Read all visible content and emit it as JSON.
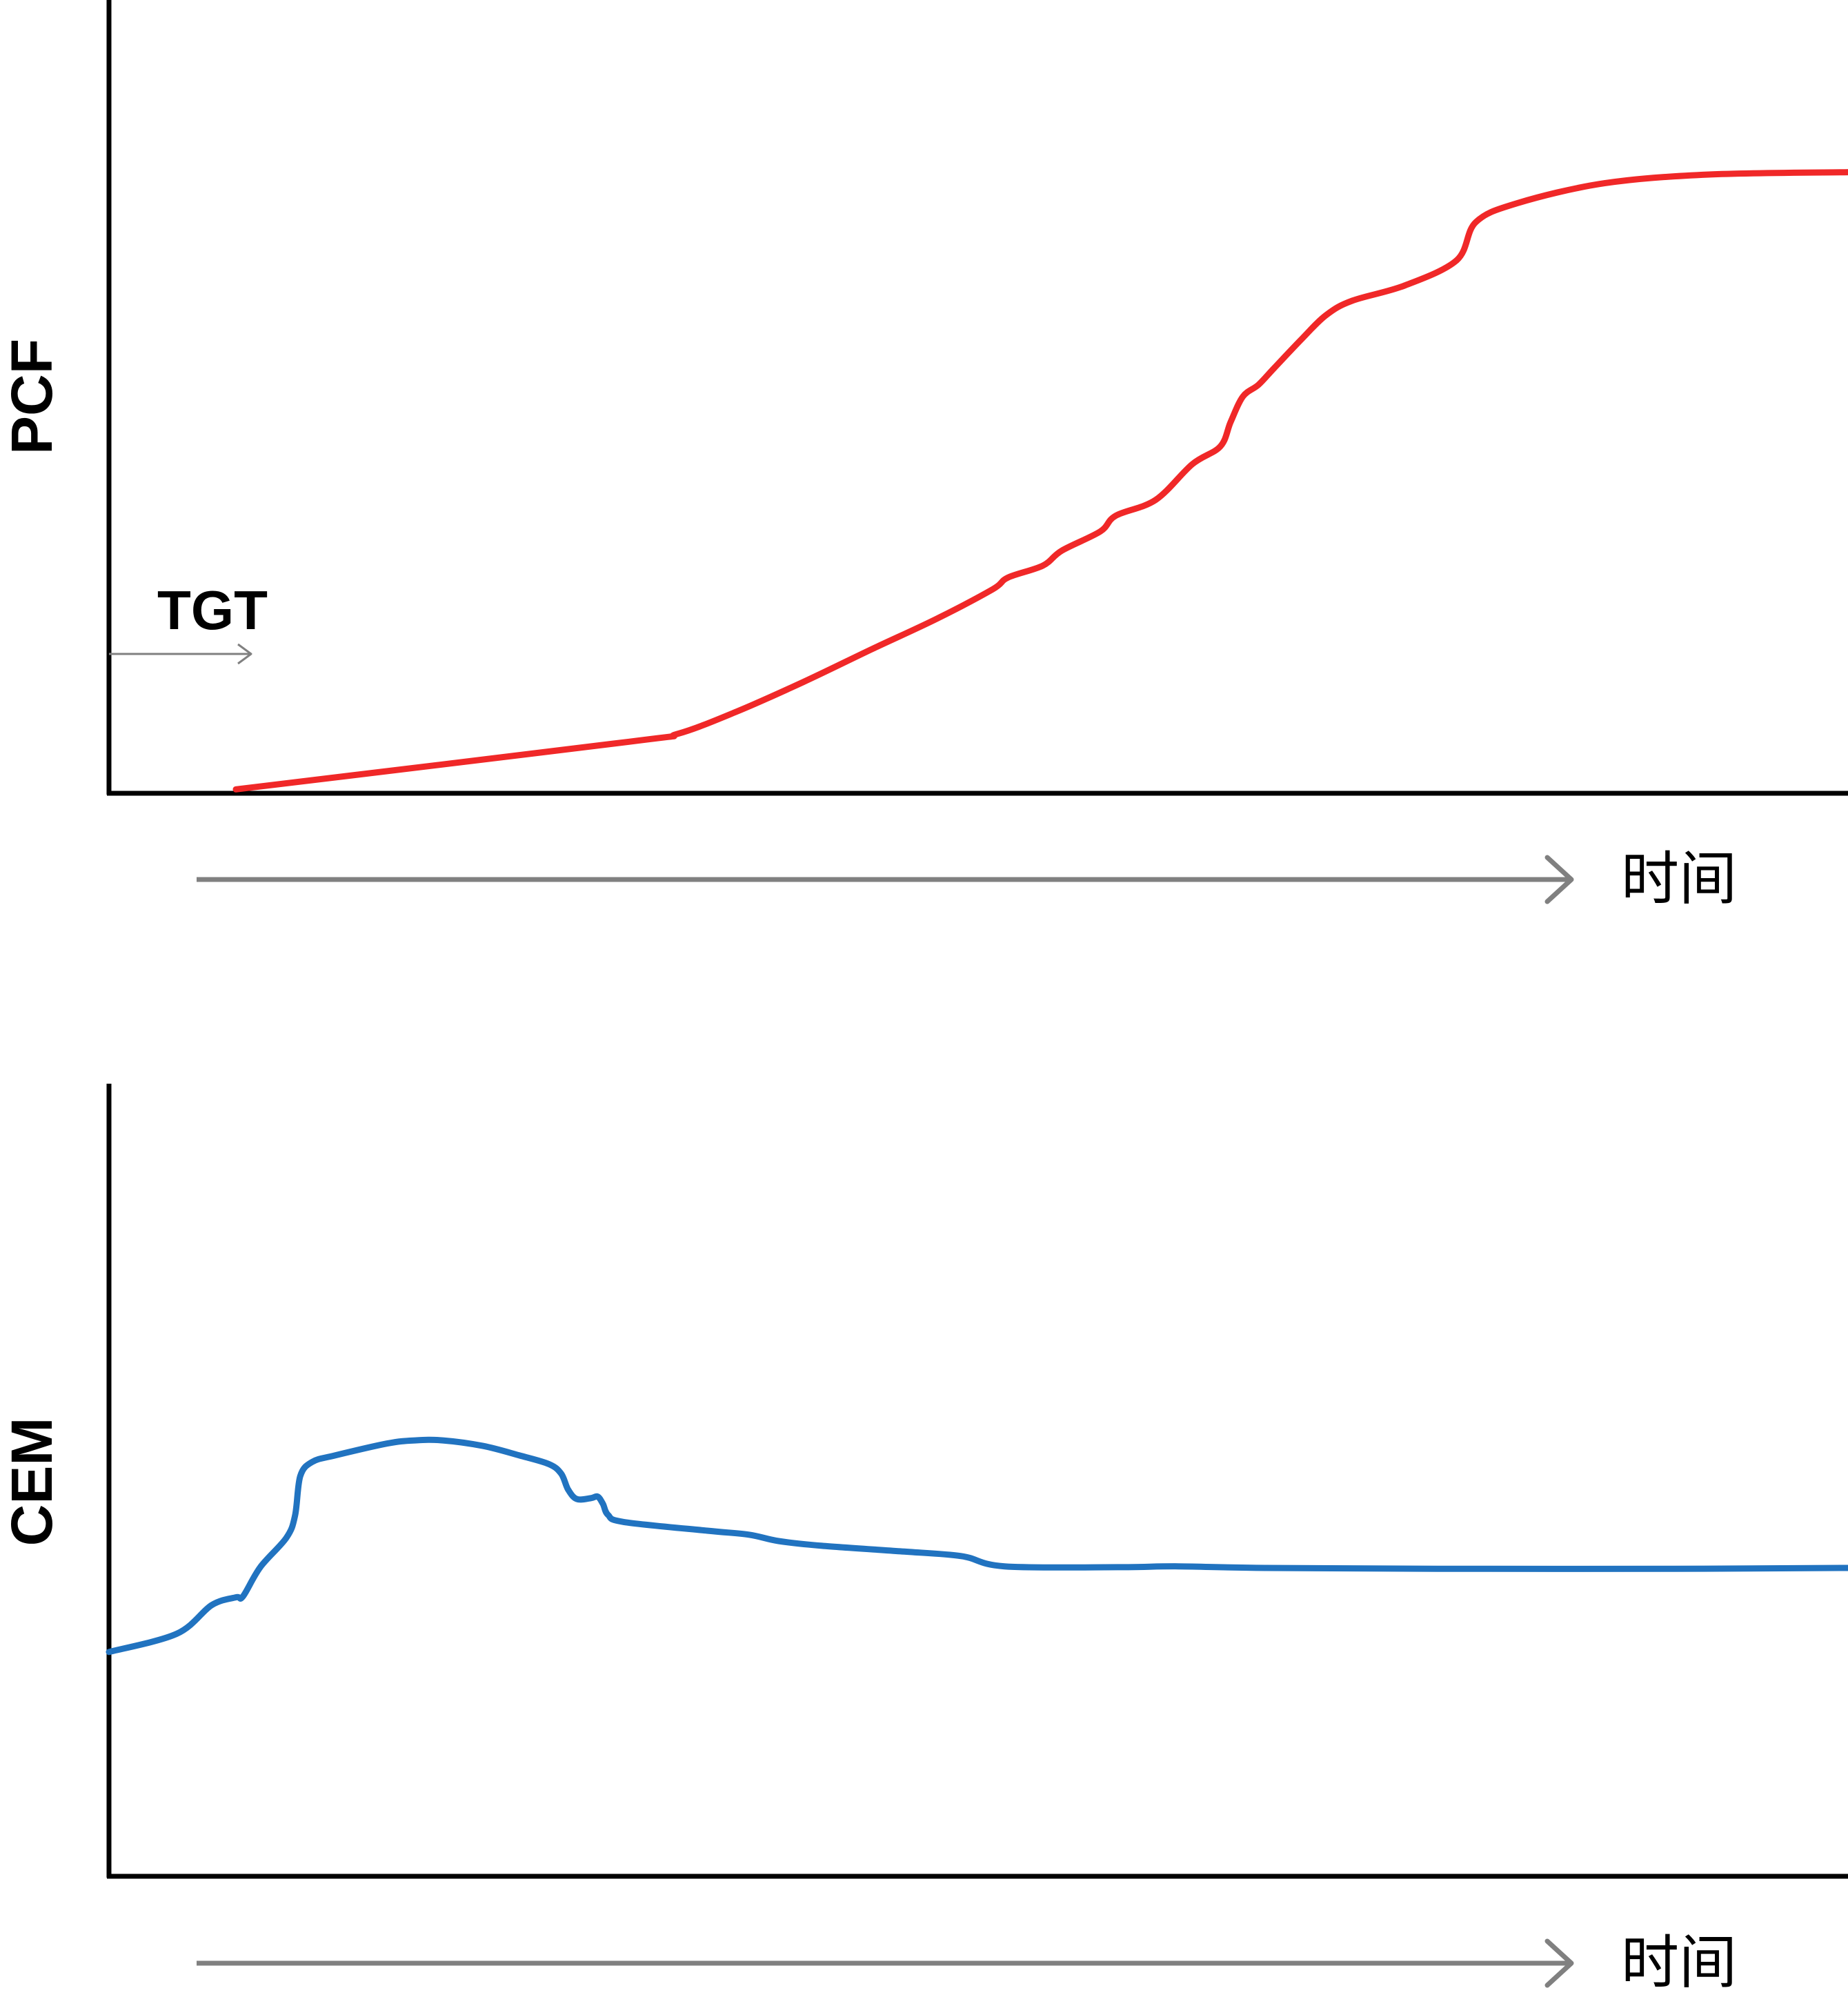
{
  "chart_data": [
    {
      "type": "line",
      "ylabel": "PCF",
      "xlabel": "时间",
      "x_ticks_shown": false,
      "y_ticks_shown": false,
      "grid": false,
      "ylim": [
        0,
        100
      ],
      "xlim": [
        0,
        100
      ],
      "annotation": "TGT",
      "series": [
        {
          "color": "#f02828",
          "points": [
            [
              7.3,
              0.5
            ],
            [
              29.9,
              6.5
            ],
            [
              32.7,
              7.5
            ],
            [
              36.1,
              10.3
            ],
            [
              39.9,
              14.0
            ],
            [
              43.9,
              18.2
            ],
            [
              47.6,
              22.0
            ],
            [
              50.8,
              25.7
            ],
            [
              51.7,
              27.2
            ],
            [
              53.7,
              28.7
            ],
            [
              54.8,
              30.6
            ],
            [
              57.0,
              33.0
            ],
            [
              57.9,
              35.0
            ],
            [
              60.2,
              37.0
            ],
            [
              62.3,
              41.5
            ],
            [
              63.9,
              43.7
            ],
            [
              64.5,
              46.8
            ],
            [
              65.2,
              50.0
            ],
            [
              66.1,
              51.5
            ],
            [
              67.0,
              53.6
            ],
            [
              68.6,
              57.3
            ],
            [
              70.0,
              60.3
            ],
            [
              71.5,
              62.1
            ],
            [
              74.5,
              64.0
            ],
            [
              77.5,
              67.2
            ],
            [
              78.6,
              72.0
            ],
            [
              81.0,
              74.4
            ],
            [
              86.0,
              76.9
            ],
            [
              92.0,
              78.0
            ],
            [
              100.0,
              78.3
            ]
          ]
        }
      ]
    },
    {
      "type": "line",
      "ylabel": "CEM",
      "xlabel": "时间",
      "x_ticks_shown": false,
      "y_ticks_shown": false,
      "grid": false,
      "ylim": [
        0,
        100
      ],
      "xlim": [
        0,
        100
      ],
      "series": [
        {
          "color": "#2173c0",
          "points": [
            [
              0.0,
              28.3
            ],
            [
              3.9,
              30.6
            ],
            [
              5.9,
              34.2
            ],
            [
              7.3,
              35.2
            ],
            [
              7.7,
              35.3
            ],
            [
              8.7,
              39.0
            ],
            [
              10.2,
              42.7
            ],
            [
              10.7,
              45.5
            ],
            [
              11.0,
              50.5
            ],
            [
              11.7,
              52.3
            ],
            [
              13.0,
              53.1
            ],
            [
              16.0,
              54.6
            ],
            [
              17.6,
              55.0
            ],
            [
              19.2,
              55.0
            ],
            [
              21.5,
              54.3
            ],
            [
              23.6,
              53.1
            ],
            [
              25.3,
              52.0
            ],
            [
              26.0,
              50.8
            ],
            [
              26.4,
              48.8
            ],
            [
              26.9,
              47.6
            ],
            [
              27.7,
              47.7
            ],
            [
              28.1,
              47.9
            ],
            [
              28.4,
              47.0
            ],
            [
              28.7,
              45.6
            ],
            [
              29.6,
              44.7
            ],
            [
              34.4,
              43.6
            ],
            [
              36.8,
              43.1
            ],
            [
              38.5,
              42.3
            ],
            [
              41.0,
              41.7
            ],
            [
              45.5,
              41.0
            ],
            [
              49.0,
              40.4
            ],
            [
              51.5,
              39.1
            ],
            [
              58.0,
              39.0
            ],
            [
              61.5,
              39.1
            ],
            [
              66.5,
              38.9
            ],
            [
              76.4,
              38.8
            ],
            [
              90.0,
              38.8
            ],
            [
              100.0,
              38.9
            ]
          ]
        }
      ]
    }
  ]
}
